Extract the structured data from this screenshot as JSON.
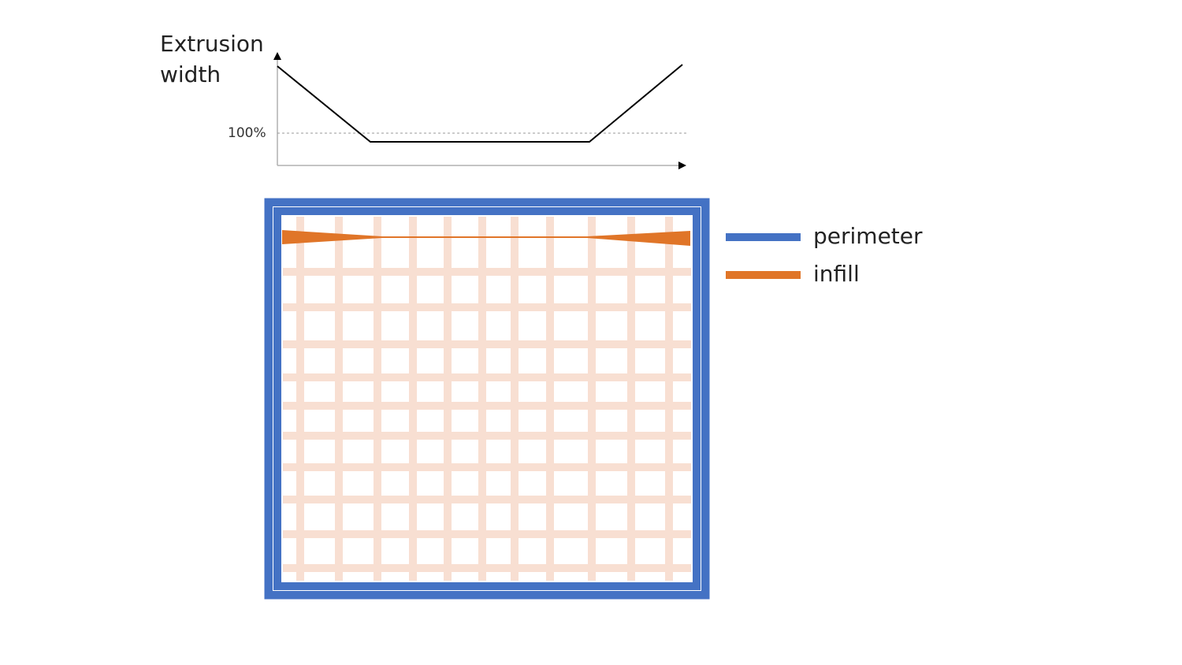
{
  "graph": {
    "y_label_line1": "Extrusion",
    "y_label_line2": "width",
    "reference_tick": "100%"
  },
  "legend": [
    {
      "label": "perimeter",
      "color": "#4472C4"
    },
    {
      "label": "infill",
      "color": "#E07528"
    }
  ],
  "colors": {
    "perimeter": "#4472C4",
    "infill": "#E07528",
    "infill_faded": "#F8DFD2",
    "axis": "#000000"
  }
}
